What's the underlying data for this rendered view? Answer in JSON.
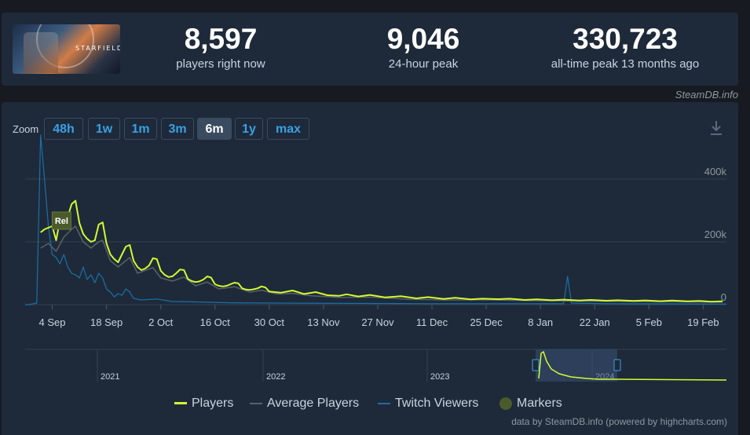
{
  "game": {
    "logo_text": "STARFIELD"
  },
  "stats": [
    {
      "value": "8,597",
      "label": "players right now"
    },
    {
      "value": "9,046",
      "label": "24-hour peak"
    },
    {
      "value": "330,723",
      "label": "all-time peak 13 months ago"
    }
  ],
  "credit_top": "SteamDB.info",
  "zoom": {
    "label": "Zoom",
    "buttons": [
      "48h",
      "1w",
      "1m",
      "3m",
      "6m",
      "1y",
      "max"
    ],
    "active": "6m"
  },
  "credit_bottom": "data by SteamDB.info (powered by highcharts.com)",
  "colors": {
    "players": "#d3fa31",
    "average": "#5a6068",
    "twitch": "#1c6fa8",
    "marker": "#4b5a2b",
    "accent": "#3aa0e6"
  },
  "chart_data": {
    "type": "line",
    "x_unit": "date",
    "xlim": [
      "2023-08-28",
      "2024-02-25"
    ],
    "ylim": [
      0,
      500000
    ],
    "y_ticks": [
      0,
      200000,
      400000
    ],
    "y_tick_labels": [
      "0",
      "200k",
      "400k"
    ],
    "x_tick_labels": [
      "4 Sep",
      "18 Sep",
      "2 Oct",
      "16 Oct",
      "30 Oct",
      "13 Nov",
      "27 Nov",
      "11 Dec",
      "25 Dec",
      "8 Jan",
      "22 Jan",
      "5 Feb",
      "19 Feb"
    ],
    "x_tick_dates": [
      "2023-09-04",
      "2023-09-18",
      "2023-10-02",
      "2023-10-16",
      "2023-10-30",
      "2023-11-13",
      "2023-11-27",
      "2023-12-11",
      "2023-12-25",
      "2024-01-08",
      "2024-01-22",
      "2024-02-05",
      "2024-02-19"
    ],
    "grid": true,
    "legend_position": "bottom",
    "series": [
      {
        "name": "Players",
        "points": [
          [
            "2023-09-01",
            230000
          ],
          [
            "2023-09-02",
            240000
          ],
          [
            "2023-09-03",
            245000
          ],
          [
            "2023-09-04",
            250000
          ],
          [
            "2023-09-05",
            205000
          ],
          [
            "2023-09-06",
            270000
          ],
          [
            "2023-09-07",
            260000
          ],
          [
            "2023-09-08",
            280000
          ],
          [
            "2023-09-09",
            320000
          ],
          [
            "2023-09-10",
            331000
          ],
          [
            "2023-09-11",
            260000
          ],
          [
            "2023-09-12",
            225000
          ],
          [
            "2023-09-13",
            210000
          ],
          [
            "2023-09-14",
            200000
          ],
          [
            "2023-09-15",
            205000
          ],
          [
            "2023-09-16",
            255000
          ],
          [
            "2023-09-17",
            262000
          ],
          [
            "2023-09-18",
            195000
          ],
          [
            "2023-09-19",
            160000
          ],
          [
            "2023-09-20",
            145000
          ],
          [
            "2023-09-21",
            135000
          ],
          [
            "2023-09-22",
            160000
          ],
          [
            "2023-09-23",
            185000
          ],
          [
            "2023-09-24",
            190000
          ],
          [
            "2023-09-25",
            140000
          ],
          [
            "2023-09-26",
            120000
          ],
          [
            "2023-09-27",
            110000
          ],
          [
            "2023-09-28",
            115000
          ],
          [
            "2023-09-29",
            125000
          ],
          [
            "2023-09-30",
            148000
          ],
          [
            "2023-10-01",
            145000
          ],
          [
            "2023-10-02",
            108000
          ],
          [
            "2023-10-03",
            95000
          ],
          [
            "2023-10-04",
            88000
          ],
          [
            "2023-10-05",
            90000
          ],
          [
            "2023-10-06",
            100000
          ],
          [
            "2023-10-07",
            112000
          ],
          [
            "2023-10-08",
            110000
          ],
          [
            "2023-10-09",
            82000
          ],
          [
            "2023-10-10",
            75000
          ],
          [
            "2023-10-11",
            72000
          ],
          [
            "2023-10-12",
            74000
          ],
          [
            "2023-10-13",
            80000
          ],
          [
            "2023-10-14",
            90000
          ],
          [
            "2023-10-15",
            86000
          ],
          [
            "2023-10-16",
            65000
          ],
          [
            "2023-10-17",
            60000
          ],
          [
            "2023-10-18",
            58000
          ],
          [
            "2023-10-19",
            60000
          ],
          [
            "2023-10-20",
            65000
          ],
          [
            "2023-10-21",
            70000
          ],
          [
            "2023-10-22",
            68000
          ],
          [
            "2023-10-23",
            52000
          ],
          [
            "2023-10-24",
            48000
          ],
          [
            "2023-10-25",
            47000
          ],
          [
            "2023-10-26",
            49000
          ],
          [
            "2023-10-27",
            52000
          ],
          [
            "2023-10-28",
            58000
          ],
          [
            "2023-10-29",
            55000
          ],
          [
            "2023-10-30",
            42000
          ],
          [
            "2023-11-02",
            38000
          ],
          [
            "2023-11-05",
            45000
          ],
          [
            "2023-11-08",
            34000
          ],
          [
            "2023-11-11",
            40000
          ],
          [
            "2023-11-14",
            30000
          ],
          [
            "2023-11-17",
            28000
          ],
          [
            "2023-11-19",
            33000
          ],
          [
            "2023-11-22",
            26000
          ],
          [
            "2023-11-25",
            31000
          ],
          [
            "2023-11-29",
            23000
          ],
          [
            "2023-12-03",
            27000
          ],
          [
            "2023-12-07",
            20000
          ],
          [
            "2023-12-10",
            24000
          ],
          [
            "2023-12-14",
            18000
          ],
          [
            "2023-12-17",
            22000
          ],
          [
            "2023-12-21",
            17000
          ],
          [
            "2023-12-24",
            19000
          ],
          [
            "2023-12-28",
            17500
          ],
          [
            "2023-12-31",
            19000
          ],
          [
            "2024-01-04",
            15000
          ],
          [
            "2024-01-07",
            17000
          ],
          [
            "2024-01-11",
            14000
          ],
          [
            "2024-01-14",
            16000
          ],
          [
            "2024-01-18",
            13000
          ],
          [
            "2024-01-21",
            15000
          ],
          [
            "2024-01-25",
            12500
          ],
          [
            "2024-01-28",
            14000
          ],
          [
            "2024-02-01",
            12000
          ],
          [
            "2024-02-04",
            13500
          ],
          [
            "2024-02-08",
            11000
          ],
          [
            "2024-02-11",
            13000
          ],
          [
            "2024-02-15",
            10500
          ],
          [
            "2024-02-18",
            12000
          ],
          [
            "2024-02-21",
            9500
          ],
          [
            "2024-02-24",
            10500
          ]
        ]
      },
      {
        "name": "Average Players",
        "points": [
          [
            "2023-09-01",
            180000
          ],
          [
            "2023-09-03",
            195000
          ],
          [
            "2023-09-05",
            170000
          ],
          [
            "2023-09-07",
            215000
          ],
          [
            "2023-09-09",
            240000
          ],
          [
            "2023-09-10",
            250000
          ],
          [
            "2023-09-12",
            200000
          ],
          [
            "2023-09-14",
            180000
          ],
          [
            "2023-09-16",
            200000
          ],
          [
            "2023-09-17",
            205000
          ],
          [
            "2023-09-19",
            140000
          ],
          [
            "2023-09-21",
            120000
          ],
          [
            "2023-09-24",
            150000
          ],
          [
            "2023-09-26",
            100000
          ],
          [
            "2023-09-30",
            118000
          ],
          [
            "2023-10-02",
            85000
          ],
          [
            "2023-10-05",
            75000
          ],
          [
            "2023-10-08",
            88000
          ],
          [
            "2023-10-11",
            60000
          ],
          [
            "2023-10-14",
            72000
          ],
          [
            "2023-10-17",
            50000
          ],
          [
            "2023-10-21",
            57000
          ],
          [
            "2023-10-25",
            40000
          ],
          [
            "2023-10-28",
            46000
          ],
          [
            "2023-11-01",
            34000
          ],
          [
            "2023-11-05",
            36000
          ],
          [
            "2023-11-10",
            28000
          ],
          [
            "2023-11-17",
            23000
          ],
          [
            "2023-11-25",
            24000
          ],
          [
            "2023-12-05",
            17000
          ],
          [
            "2023-12-15",
            15000
          ],
          [
            "2023-12-25",
            15500
          ],
          [
            "2024-01-05",
            13000
          ],
          [
            "2024-01-15",
            12000
          ],
          [
            "2024-01-25",
            11000
          ],
          [
            "2024-02-05",
            10000
          ],
          [
            "2024-02-15",
            9000
          ],
          [
            "2024-02-24",
            8500
          ]
        ]
      },
      {
        "name": "Twitch Viewers",
        "points": [
          [
            "2023-08-28",
            0
          ],
          [
            "2023-08-29",
            0
          ],
          [
            "2023-08-31",
            5000
          ],
          [
            "2023-09-01",
            540000
          ],
          [
            "2023-09-02",
            400000
          ],
          [
            "2023-09-03",
            250000
          ],
          [
            "2023-09-04",
            160000
          ],
          [
            "2023-09-05",
            150000
          ],
          [
            "2023-09-06",
            130000
          ],
          [
            "2023-09-07",
            160000
          ],
          [
            "2023-09-08",
            120000
          ],
          [
            "2023-09-09",
            100000
          ],
          [
            "2023-09-10",
            95000
          ],
          [
            "2023-09-11",
            85000
          ],
          [
            "2023-09-12",
            120000
          ],
          [
            "2023-09-13",
            80000
          ],
          [
            "2023-09-14",
            95000
          ],
          [
            "2023-09-15",
            70000
          ],
          [
            "2023-09-16",
            100000
          ],
          [
            "2023-09-17",
            85000
          ],
          [
            "2023-09-18",
            50000
          ],
          [
            "2023-09-19",
            40000
          ],
          [
            "2023-09-20",
            25000
          ],
          [
            "2023-09-21",
            35000
          ],
          [
            "2023-09-22",
            30000
          ],
          [
            "2023-09-23",
            50000
          ],
          [
            "2023-09-24",
            40000
          ],
          [
            "2023-09-25",
            20000
          ],
          [
            "2023-09-27",
            15000
          ],
          [
            "2023-10-01",
            18000
          ],
          [
            "2023-10-05",
            10000
          ],
          [
            "2023-10-10",
            9000
          ],
          [
            "2023-10-20",
            6000
          ],
          [
            "2023-11-01",
            5000
          ],
          [
            "2023-11-20",
            4000
          ],
          [
            "2023-12-10",
            3000
          ],
          [
            "2024-01-08",
            3000
          ],
          [
            "2024-01-14",
            3000
          ],
          [
            "2024-01-15",
            90000
          ],
          [
            "2024-01-16",
            5000
          ],
          [
            "2024-01-25",
            3000
          ],
          [
            "2024-02-10",
            2500
          ],
          [
            "2024-02-25",
            2000
          ]
        ]
      }
    ],
    "markers": [
      {
        "date": "2023-09-06",
        "label": "Rel"
      }
    ],
    "navigator": {
      "labels": [
        "2021",
        "2022",
        "2023",
        "2024"
      ],
      "selected_range": [
        "2023-08-28",
        "2024-02-25"
      ]
    }
  }
}
